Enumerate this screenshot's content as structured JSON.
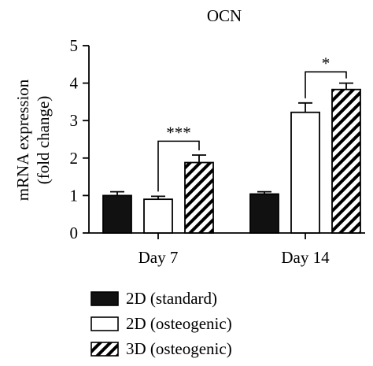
{
  "chart_data": {
    "type": "bar",
    "title": "OCN",
    "ylabel_line1": "mRNA expression",
    "ylabel_line2": "(fold change)",
    "xlabel": "",
    "ylim": [
      0,
      5
    ],
    "yticks": [
      "0",
      "1",
      "2",
      "3",
      "4",
      "5"
    ],
    "ytick_values": [
      0,
      1,
      2,
      3,
      4,
      5
    ],
    "categories": [
      "Day 7",
      "Day 14"
    ],
    "series": [
      {
        "name": "2D (standard)",
        "fill": "solid",
        "color": "#111111",
        "values": [
          1.0,
          1.04
        ],
        "errors": [
          0.1,
          0.06
        ]
      },
      {
        "name": "2D (osteogenic)",
        "fill": "white",
        "color": "#ffffff",
        "values": [
          0.9,
          3.22
        ],
        "errors": [
          0.08,
          0.25
        ]
      },
      {
        "name": "3D (osteogenic)",
        "fill": "hatched",
        "color": "#ffffff",
        "values": [
          1.88,
          3.83
        ],
        "errors": [
          0.2,
          0.17
        ]
      }
    ],
    "annotations": [
      {
        "label": "***",
        "category_index": 0,
        "between_series": [
          1,
          2
        ],
        "y": 2.45
      },
      {
        "label": "*",
        "category_index": 1,
        "between_series": [
          1,
          2
        ],
        "y": 4.3
      }
    ],
    "grid": false,
    "legend": "bottom"
  }
}
